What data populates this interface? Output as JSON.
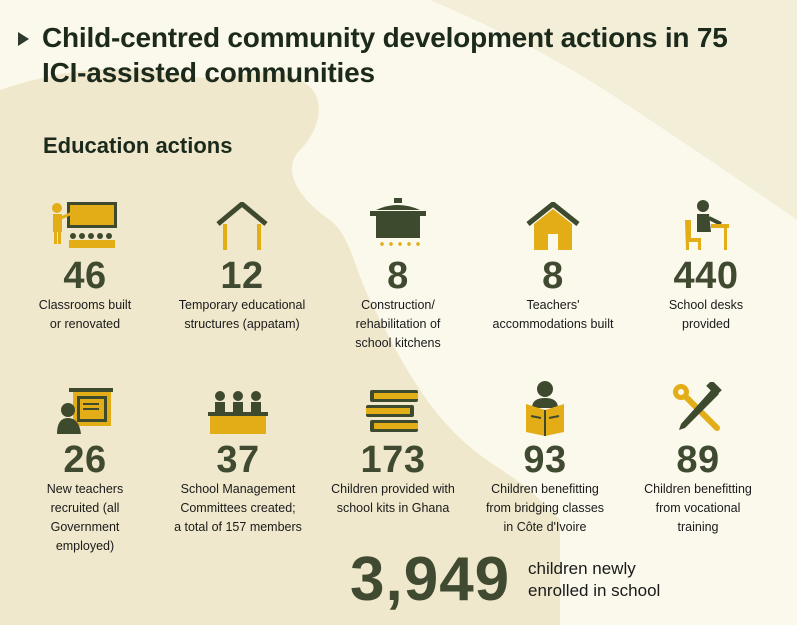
{
  "title": "Child-centred community development actions in 75 ICI-assisted communities",
  "section_heading": "Education actions",
  "colors": {
    "icon_gold": "#e2ad17",
    "icon_dark": "#3e4a2e",
    "value_green": "#3f4a30",
    "background": "#fbf8ec",
    "map": "#efe8cc"
  },
  "stats": [
    {
      "icon": "classroom-teacher-icon",
      "value": "46",
      "label": "Classrooms built\nor renovated"
    },
    {
      "icon": "house-outline-icon",
      "value": "12",
      "label": "Temporary educational\nstructures (appatam)"
    },
    {
      "icon": "cooking-pot-icon",
      "value": "8",
      "label": "Construction/\nrehabilitation of\nschool kitchens"
    },
    {
      "icon": "house-icon",
      "value": "8",
      "label": "Teachers'\naccommodations built"
    },
    {
      "icon": "school-desk-icon",
      "value": "440",
      "label": "School desks\nprovided"
    },
    {
      "icon": "teacher-board-icon",
      "value": "26",
      "label": "New teachers\nrecruited (all\nGovernment\nemployed)"
    },
    {
      "icon": "committee-icon",
      "value": "37",
      "label": "School Management\nCommittees created;\na total of 157 members"
    },
    {
      "icon": "books-icon",
      "value": "173",
      "label": "Children provided with\nschool kits in Ghana"
    },
    {
      "icon": "reading-child-icon",
      "value": "93",
      "label": "Children benefitting\nfrom bridging classes\nin Côte d'Ivoire"
    },
    {
      "icon": "tools-icon",
      "value": "89",
      "label": "Children benefitting\nfrom vocational\ntraining"
    }
  ],
  "total": {
    "value": "3,949",
    "label": "children newly\nenrolled in school"
  }
}
